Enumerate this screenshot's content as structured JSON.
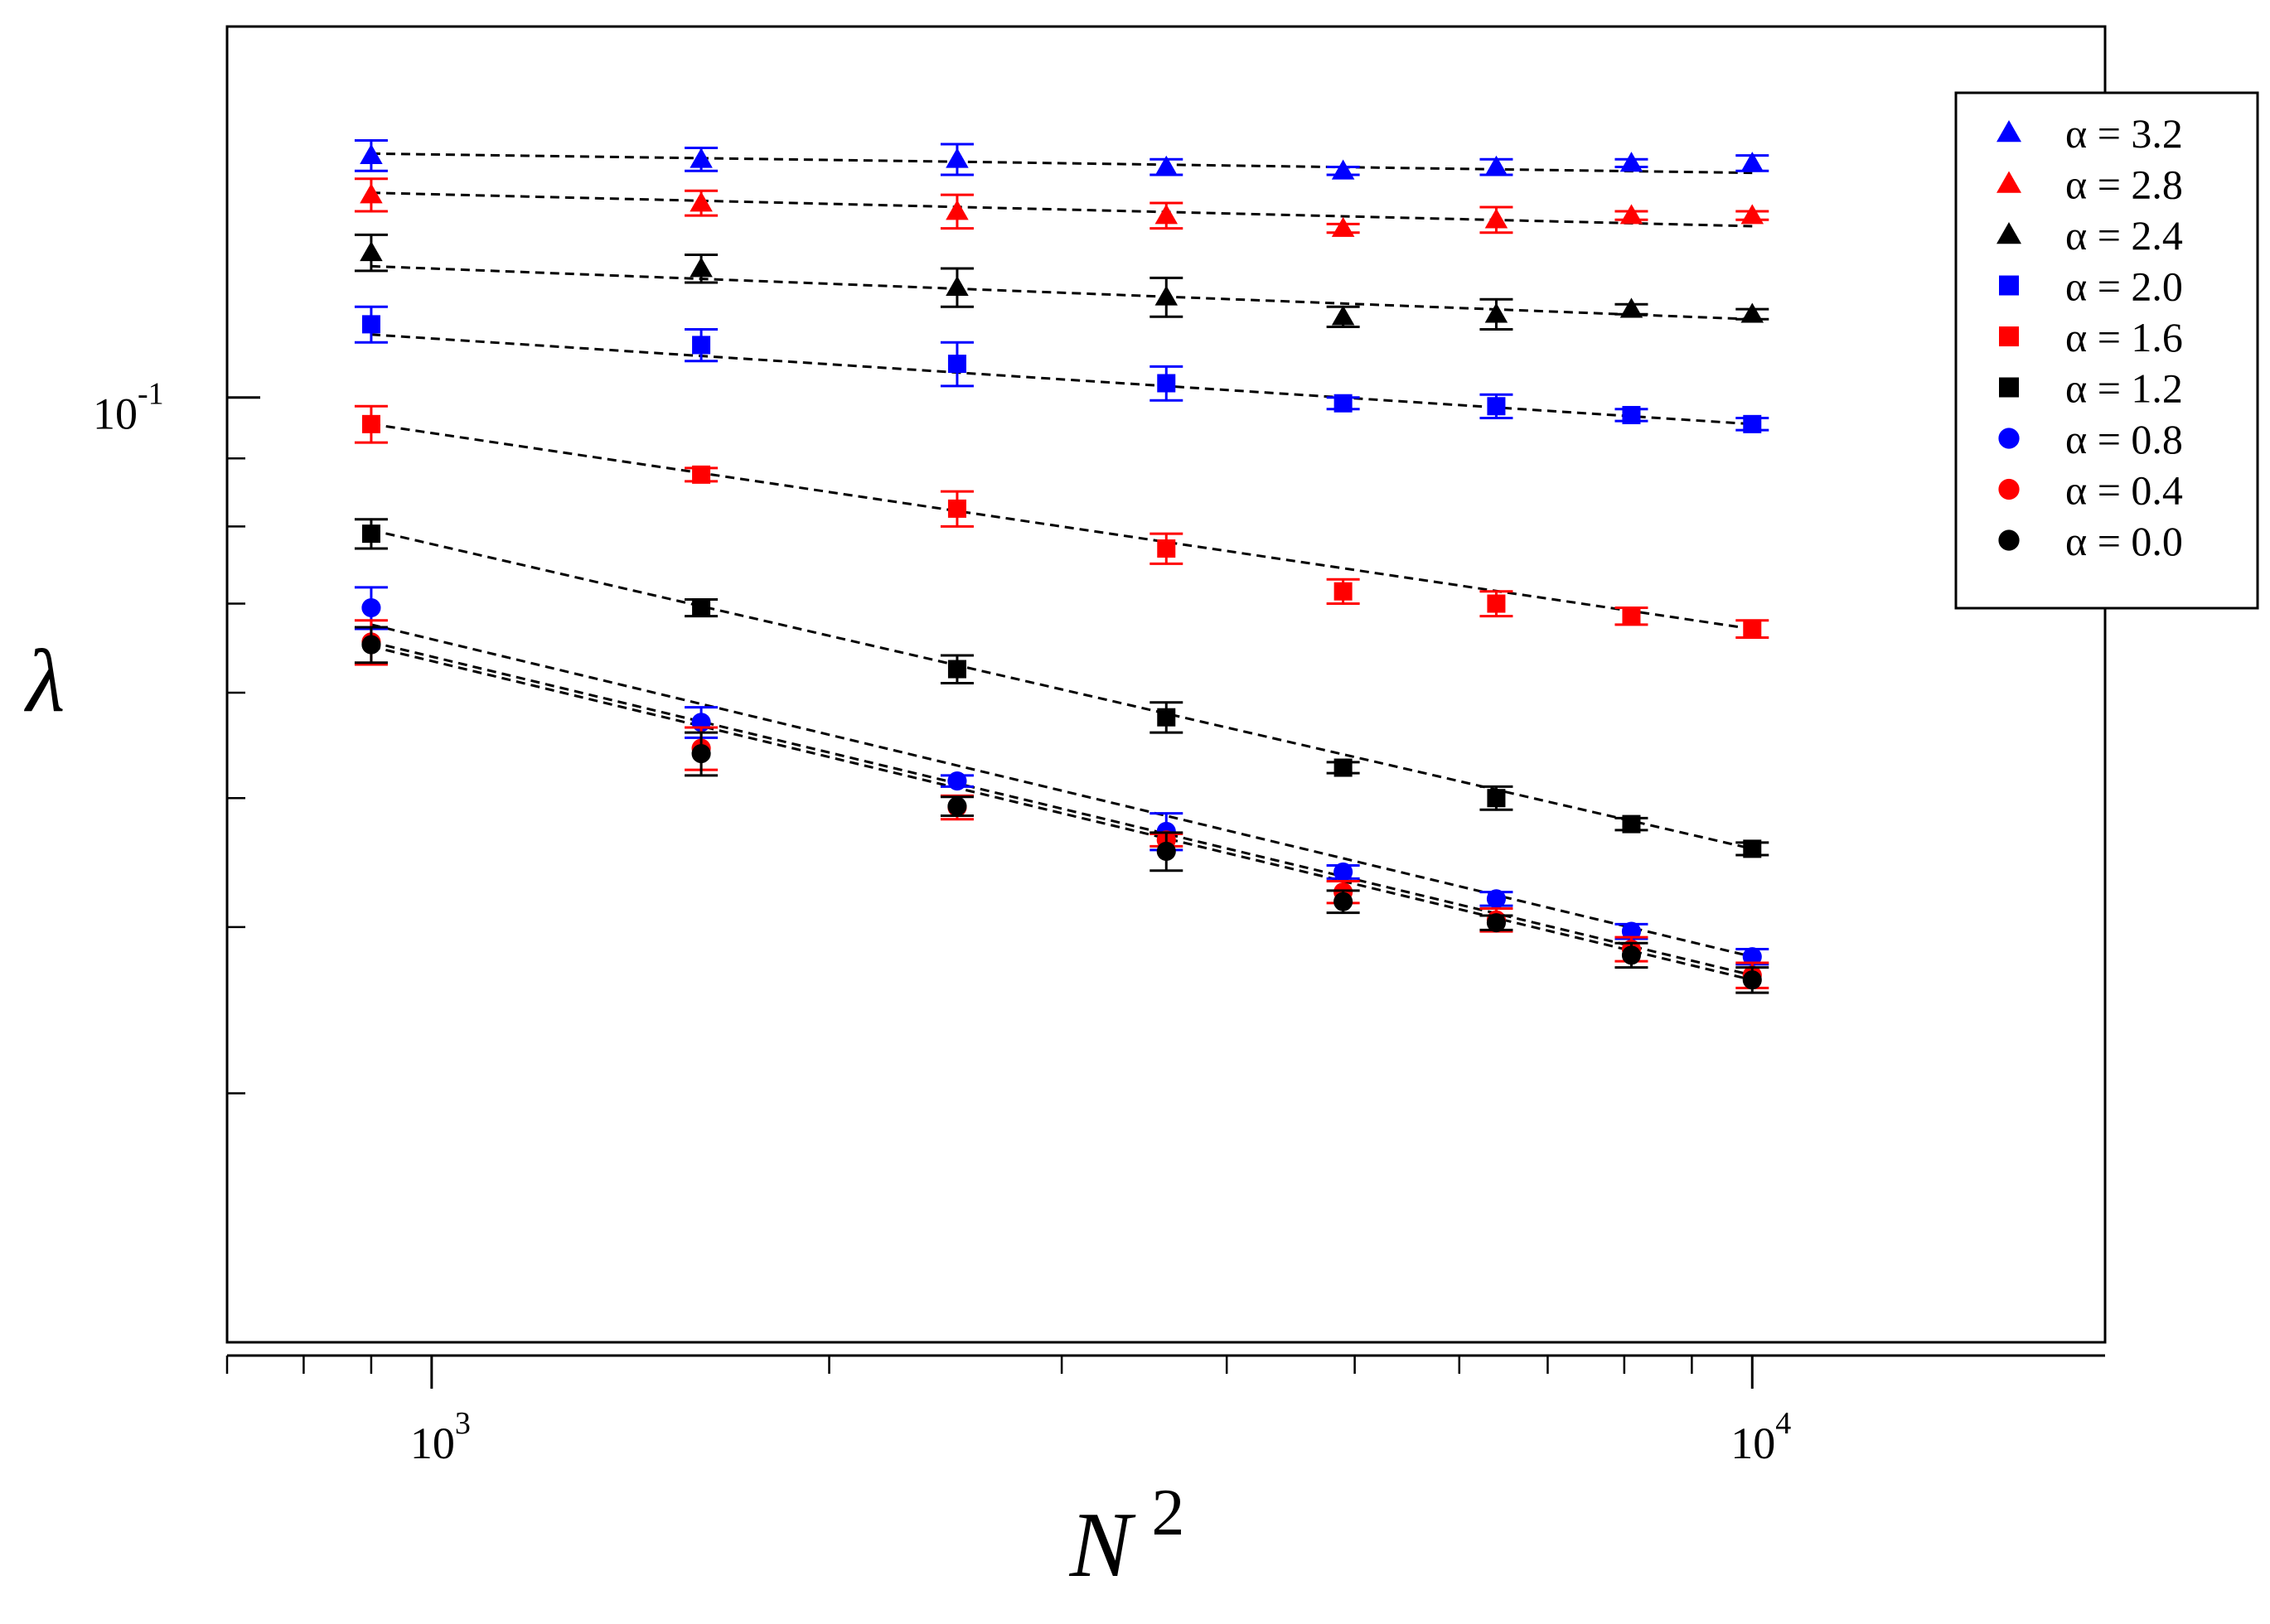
{
  "chart_data": {
    "type": "scatter",
    "title": "",
    "xlabel": "N",
    "xlabel_superscript": "2",
    "ylabel": "λ",
    "x_scale": "log",
    "y_scale": "log",
    "xlim": [
      700,
      18500
    ],
    "ylim": [
      0.0195,
      0.19
    ],
    "x_tick_labels": [
      {
        "value": 1000,
        "base": "10",
        "exp": "3"
      },
      {
        "value": 10000,
        "base": "10",
        "exp": "4"
      }
    ],
    "y_tick_labels": [
      {
        "value": 0.1,
        "base": "10",
        "exp": "-1"
      }
    ],
    "x_minor_ticks": [
      700,
      800,
      900,
      2000,
      3000,
      4000,
      5000,
      6000,
      7000,
      8000,
      9000
    ],
    "y_minor_ticks": [
      0.03,
      0.04,
      0.05,
      0.06,
      0.07,
      0.08,
      0.09,
      0.2
    ],
    "grid": false,
    "legend_position": "top-right",
    "x": [
      900,
      1600,
      2500,
      3600,
      4900,
      6400,
      8100,
      10000
    ],
    "series": [
      {
        "name": "α = 3.2",
        "alpha_value": "3.2",
        "marker": "triangle",
        "color": "#0000ff",
        "values": [
          0.152,
          0.151,
          0.151,
          0.149,
          0.148,
          0.149,
          0.15,
          0.15
        ],
        "errors": [
          0.004,
          0.003,
          0.004,
          0.002,
          0.001,
          0.002,
          0.001,
          0.002
        ],
        "fit": [
          0.1525,
          0.1475
        ]
      },
      {
        "name": "α = 2.8",
        "alpha_value": "2.8",
        "marker": "triangle",
        "color": "#ff0000",
        "values": [
          0.142,
          0.14,
          0.138,
          0.137,
          0.134,
          0.136,
          0.137,
          0.137
        ],
        "errors": [
          0.004,
          0.003,
          0.004,
          0.003,
          0.001,
          0.003,
          0.001,
          0.001
        ],
        "fit": [
          0.1425,
          0.1345
        ]
      },
      {
        "name": "α = 2.4",
        "alpha_value": "2.4",
        "marker": "triangle",
        "color": "#000000",
        "values": [
          0.1285,
          0.125,
          0.121,
          0.119,
          0.115,
          0.1155,
          0.1165,
          0.1155
        ],
        "errors": [
          0.004,
          0.003,
          0.004,
          0.004,
          0.002,
          0.003,
          0.001,
          0.001
        ],
        "fit": [
          0.1255,
          0.1145
        ]
      },
      {
        "name": "α = 2.0",
        "alpha_value": "2.0",
        "marker": "square",
        "color": "#0000ff",
        "values": [
          0.1135,
          0.1095,
          0.106,
          0.1025,
          0.099,
          0.0985,
          0.097,
          0.0955
        ],
        "errors": [
          0.0035,
          0.003,
          0.004,
          0.003,
          0.001,
          0.002,
          0.001,
          0.001
        ],
        "fit": [
          0.1115,
          0.0955
        ]
      },
      {
        "name": "α = 1.6",
        "alpha_value": "1.6",
        "marker": "square",
        "color": "#ff0000",
        "values": [
          0.0955,
          0.0875,
          0.0825,
          0.077,
          0.0715,
          0.07,
          0.0685,
          0.067
        ],
        "errors": [
          0.003,
          0.001,
          0.0025,
          0.002,
          0.0015,
          0.0015,
          0.001,
          0.001
        ],
        "fit": [
          0.0955,
          0.067
        ]
      },
      {
        "name": "α = 1.2",
        "alpha_value": "1.2",
        "marker": "square",
        "color": "#000000",
        "values": [
          0.079,
          0.0695,
          0.0625,
          0.0575,
          0.0527,
          0.05,
          0.0478,
          0.0458
        ],
        "errors": [
          0.002,
          0.001,
          0.0015,
          0.0015,
          0.0005,
          0.001,
          0.0005,
          0.0005
        ],
        "fit": [
          0.0795,
          0.0458
        ]
      },
      {
        "name": "α = 0.8",
        "alpha_value": "0.8",
        "marker": "circle",
        "color": "#0000ff",
        "values": [
          0.0695,
          0.057,
          0.0515,
          0.0472,
          0.044,
          0.042,
          0.0397,
          0.038
        ],
        "errors": [
          0.0025,
          0.0015,
          0.0005,
          0.0015,
          0.0005,
          0.0005,
          0.0005,
          0.0005
        ],
        "fit": [
          0.0675,
          0.038
        ]
      },
      {
        "name": "α = 0.4",
        "alpha_value": "0.4",
        "marker": "circle",
        "color": "#ff0000",
        "values": [
          0.0655,
          0.0545,
          0.0492,
          0.0465,
          0.0425,
          0.0405,
          0.0385,
          0.0368
        ],
        "errors": [
          0.0025,
          0.002,
          0.001,
          0.0005,
          0.0008,
          0.0008,
          0.0008,
          0.0008
        ],
        "fit": [
          0.0655,
          0.0368
        ]
      },
      {
        "name": "α = 0.0",
        "alpha_value": "0.0",
        "marker": "circle",
        "color": "#000000",
        "values": [
          0.0652,
          0.054,
          0.0493,
          0.0456,
          0.0418,
          0.0403,
          0.0381,
          0.0365
        ],
        "errors": [
          0.002,
          0.002,
          0.0008,
          0.0015,
          0.0008,
          0.0005,
          0.0008,
          0.0008
        ],
        "fit": [
          0.065,
          0.0365
        ]
      }
    ]
  }
}
